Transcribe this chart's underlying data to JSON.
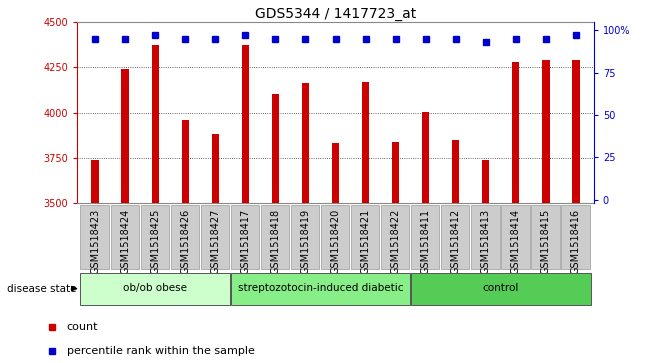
{
  "title": "GDS5344 / 1417723_at",
  "samples": [
    "GSM1518423",
    "GSM1518424",
    "GSM1518425",
    "GSM1518426",
    "GSM1518427",
    "GSM1518417",
    "GSM1518418",
    "GSM1518419",
    "GSM1518420",
    "GSM1518421",
    "GSM1518422",
    "GSM1518411",
    "GSM1518412",
    "GSM1518413",
    "GSM1518414",
    "GSM1518415",
    "GSM1518416"
  ],
  "counts": [
    3740,
    4240,
    4370,
    3960,
    3880,
    4370,
    4100,
    4160,
    3830,
    4170,
    3840,
    4005,
    3850,
    3740,
    4280,
    4290,
    4290
  ],
  "percentiles": [
    95,
    95,
    97,
    95,
    95,
    97,
    95,
    95,
    95,
    95,
    95,
    95,
    95,
    93,
    95,
    95,
    97
  ],
  "groups": [
    {
      "label": "ob/ob obese",
      "start": 0,
      "end": 5,
      "color": "#ccffcc"
    },
    {
      "label": "streptozotocin-induced diabetic",
      "start": 5,
      "end": 11,
      "color": "#88ee88"
    },
    {
      "label": "control",
      "start": 11,
      "end": 17,
      "color": "#55cc55"
    }
  ],
  "ylim": [
    3500,
    4500
  ],
  "yticks_left": [
    3500,
    3750,
    4000,
    4250,
    4500
  ],
  "yticks_right": [
    0,
    25,
    50,
    75,
    100
  ],
  "bar_color": "#cc0000",
  "dot_color": "#0000cc",
  "plot_bg": "#ffffff",
  "xlabel_bg": "#cccccc",
  "grid_color": "#333333",
  "title_fontsize": 10,
  "tick_label_fontsize": 7,
  "bar_width": 0.25
}
